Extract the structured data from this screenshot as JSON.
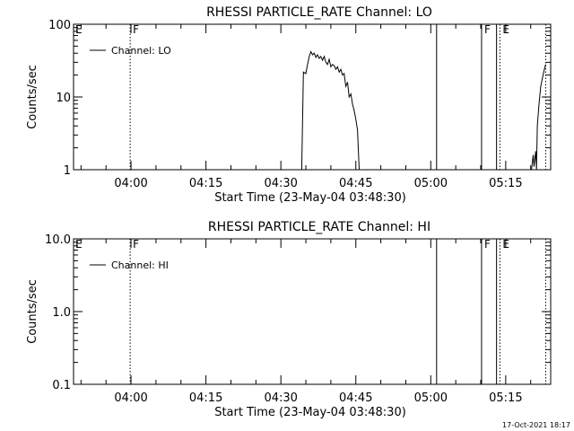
{
  "footer": {
    "timestamp": "17-Oct-2021 18:17"
  },
  "chart_data": [
    {
      "type": "line",
      "title": "RHESSI PARTICLE_RATE Channel: LO",
      "xlabel": "Start Time (23-May-04 03:48:30)",
      "ylabel": "Counts/sec",
      "yscale": "log",
      "xlim": [
        "03:48:30",
        "05:24:00"
      ],
      "ylim": [
        1,
        100
      ],
      "x_ticks": [
        "04:00",
        "04:15",
        "04:30",
        "04:45",
        "05:00",
        "05:15"
      ],
      "y_ticks": [
        "1",
        "10",
        "100"
      ],
      "legend": {
        "label": "Channel: LO",
        "position": "top-left"
      },
      "markers": [
        {
          "time": "03:59:50",
          "label": "F",
          "style": "dotted"
        },
        {
          "time": "05:01:10",
          "label": "",
          "style": "solid"
        },
        {
          "time": "05:10:10",
          "label": "F",
          "style": "solid"
        },
        {
          "time": "05:13:10",
          "label": "",
          "style": "solid"
        },
        {
          "time": "05:13:50",
          "label": "E",
          "style": "dotted"
        },
        {
          "time": "05:23:00",
          "label": "",
          "style": "dotted"
        }
      ],
      "edge_label": "E",
      "series": [
        {
          "segments": [
            {
              "x": [
                "04:34:10",
                "04:34:30",
                "04:35:00",
                "04:35:20",
                "04:35:40",
                "04:36:00",
                "04:36:20",
                "04:36:40",
                "04:37:00",
                "04:37:20",
                "04:37:40",
                "04:38:00",
                "04:38:20",
                "04:38:40",
                "04:39:00",
                "04:39:20",
                "04:39:40",
                "04:40:00",
                "04:40:20",
                "04:40:40",
                "04:41:00",
                "04:41:20",
                "04:41:40",
                "04:42:00",
                "04:42:20",
                "04:42:40",
                "04:43:00",
                "04:43:20",
                "04:43:40",
                "04:44:00",
                "04:44:20",
                "04:44:40",
                "04:45:00",
                "04:45:20",
                "04:45:40"
              ],
              "y": [
                1.0,
                22,
                21,
                28,
                36,
                42,
                38,
                40,
                35,
                38,
                34,
                36,
                32,
                36,
                30,
                28,
                33,
                26,
                28,
                27,
                24,
                26,
                22,
                24,
                20,
                21,
                14,
                16,
                10,
                11,
                8,
                6.5,
                5,
                3.5,
                1.0
              ]
            },
            {
              "x": [
                "05:20:10",
                "05:20:30",
                "05:20:40",
                "05:21:00",
                "05:21:10",
                "05:21:20",
                "05:21:40",
                "05:22:00",
                "05:22:20",
                "05:22:40",
                "05:23:00"
              ],
              "y": [
                1.0,
                1.6,
                1.1,
                1.8,
                1.0,
                4,
                8,
                14,
                18,
                23,
                28
              ]
            }
          ]
        }
      ]
    },
    {
      "type": "line",
      "title": "RHESSI PARTICLE_RATE Channel: HI",
      "xlabel": "Start Time (23-May-04 03:48:30)",
      "ylabel": "Counts/sec",
      "yscale": "log",
      "xlim": [
        "03:48:30",
        "05:24:00"
      ],
      "ylim": [
        0.1,
        10.0
      ],
      "x_ticks": [
        "04:00",
        "04:15",
        "04:30",
        "04:45",
        "05:00",
        "05:15"
      ],
      "y_ticks": [
        "0.1",
        "1.0",
        "10.0"
      ],
      "legend": {
        "label": "Channel: HI",
        "position": "top-left"
      },
      "markers": [
        {
          "time": "03:59:50",
          "label": "F",
          "style": "dotted"
        },
        {
          "time": "05:01:10",
          "label": "",
          "style": "solid"
        },
        {
          "time": "05:10:10",
          "label": "F",
          "style": "solid"
        },
        {
          "time": "05:13:10",
          "label": "",
          "style": "solid"
        },
        {
          "time": "05:13:50",
          "label": "E",
          "style": "dotted"
        },
        {
          "time": "05:23:00",
          "label": "",
          "style": "dotted"
        }
      ],
      "edge_label": "E",
      "series": [
        {
          "segments": []
        }
      ]
    }
  ]
}
